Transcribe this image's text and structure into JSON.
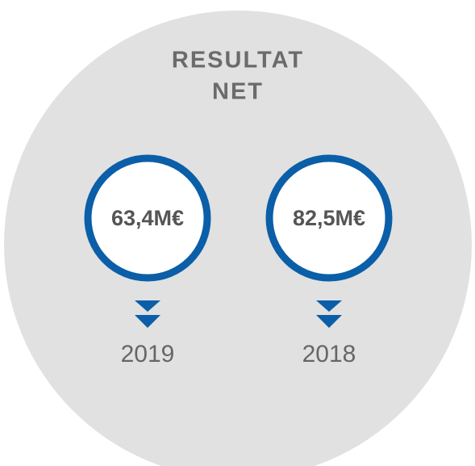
{
  "title": [
    "RESULTAT",
    "NET"
  ],
  "items": [
    {
      "value": "63,4M€",
      "year": "2019"
    },
    {
      "value": "82,5M€",
      "year": "2018"
    }
  ]
}
